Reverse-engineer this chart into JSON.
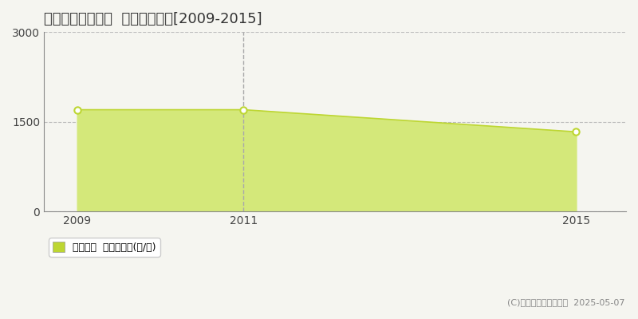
{
  "title": "富山市八尾町平林  林地価格推移[2009-2015]",
  "years": [
    2009,
    2011,
    2015
  ],
  "values": [
    1700,
    1700,
    1330
  ],
  "line_color": "#bdd632",
  "fill_color": "#d4e87a",
  "fill_alpha": 1.0,
  "marker_color": "#bdd632",
  "marker_face": "white",
  "marker_size": 6,
  "xlim": [
    2008.6,
    2015.6
  ],
  "ylim": [
    0,
    3000
  ],
  "yticks": [
    0,
    1500,
    3000
  ],
  "xticks": [
    2009,
    2011,
    2015
  ],
  "vline_x": 2011,
  "vline_color": "#aaaaaa",
  "vline_style": "--",
  "hgrid_color": "#bbbbbb",
  "hgrid_style": "--",
  "hgrid_linewidth": 0.8,
  "background_color": "#f5f5f0",
  "legend_label": "林地価格  平均坪単価(円/坪)",
  "legend_square_color": "#bdd632",
  "copyright_text": "(C)土地価格ドットコム  2025-05-07",
  "title_fontsize": 13,
  "axis_fontsize": 10,
  "legend_fontsize": 9,
  "copyright_fontsize": 8
}
